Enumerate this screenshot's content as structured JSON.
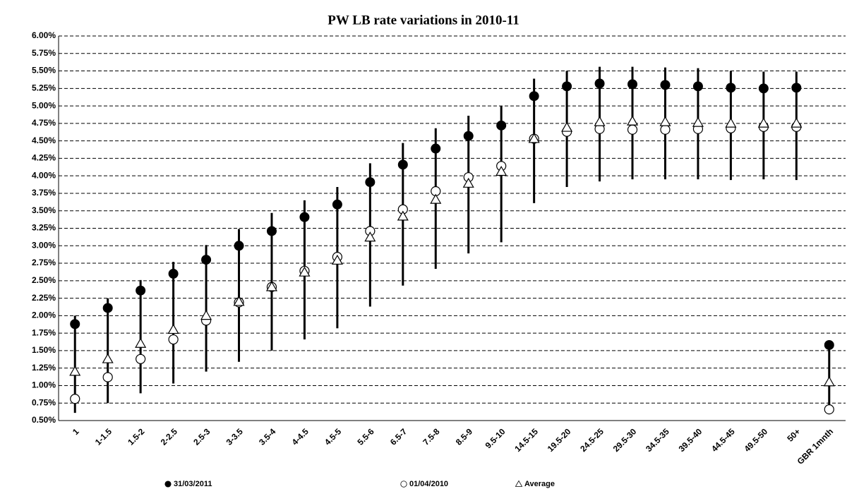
{
  "chart_data": {
    "type": "range-marker",
    "title": "PW LB rate variations in 2010-11",
    "categories": [
      "1",
      "1-1.5",
      "1.5-2",
      "2-2.5",
      "2.5-3",
      "3-3.5",
      "3.5-4",
      "4-4.5",
      "4.5-5",
      "5.5-6",
      "6.5-7",
      "7.5-8",
      "8.5-9",
      "9.5-10",
      "14.5-15",
      "19.5-20",
      "24.5-25",
      "29.5-30",
      "34.5-35",
      "39.5-40",
      "44.5-45",
      "49.5-50",
      "50+",
      "GBR 1mnth"
    ],
    "high": [
      2.0,
      2.25,
      2.51,
      2.77,
      3.01,
      3.24,
      3.47,
      3.65,
      3.84,
      4.18,
      4.47,
      4.68,
      4.86,
      5.0,
      5.39,
      5.5,
      5.56,
      5.56,
      5.55,
      5.54,
      5.5,
      5.49,
      5.49,
      1.59
    ],
    "low": [
      0.61,
      0.75,
      0.89,
      1.03,
      1.2,
      1.34,
      1.5,
      1.66,
      1.82,
      2.13,
      2.43,
      2.67,
      2.89,
      3.05,
      3.61,
      3.84,
      3.92,
      3.95,
      3.95,
      3.95,
      3.94,
      3.95,
      3.94,
      0.66
    ],
    "series": [
      {
        "name": "31/03/2011",
        "marker": "filled-circle",
        "color": "#000000",
        "values": [
          1.88,
          2.11,
          2.36,
          2.6,
          2.8,
          3.0,
          3.21,
          3.41,
          3.59,
          3.91,
          4.16,
          4.39,
          4.57,
          4.72,
          5.14,
          5.28,
          5.32,
          5.31,
          5.3,
          5.28,
          5.26,
          5.25,
          5.26,
          1.58
        ]
      },
      {
        "name": "01/04/2010",
        "marker": "open-circle",
        "color": "#000000",
        "values": [
          0.81,
          1.12,
          1.38,
          1.66,
          1.93,
          2.19,
          2.41,
          2.64,
          2.84,
          3.21,
          3.52,
          3.78,
          3.98,
          4.14,
          4.53,
          4.63,
          4.67,
          4.66,
          4.66,
          4.67,
          4.68,
          4.7,
          4.7,
          0.66
        ]
      },
      {
        "name": "Average",
        "marker": "open-triangle",
        "color": "#000000",
        "values": [
          1.2,
          1.38,
          1.6,
          1.8,
          2.0,
          2.2,
          2.41,
          2.62,
          2.79,
          3.12,
          3.42,
          3.66,
          3.89,
          4.06,
          4.53,
          4.69,
          4.77,
          4.78,
          4.77,
          4.76,
          4.75,
          4.75,
          4.75,
          1.05
        ]
      }
    ],
    "ylim": [
      0.5,
      6.0
    ],
    "yticks": [
      {
        "value": 0.5,
        "label": "0.50%"
      },
      {
        "value": 0.75,
        "label": "0.75%"
      },
      {
        "value": 1.0,
        "label": "1.00%"
      },
      {
        "value": 1.25,
        "label": "1.25%"
      },
      {
        "value": 1.5,
        "label": "1.50%"
      },
      {
        "value": 1.75,
        "label": "1.75%"
      },
      {
        "value": 2.0,
        "label": "2.00%"
      },
      {
        "value": 2.25,
        "label": "2.25%"
      },
      {
        "value": 2.5,
        "label": "2.50%"
      },
      {
        "value": 2.75,
        "label": "2.75%"
      },
      {
        "value": 3.0,
        "label": "3.00%"
      },
      {
        "value": 3.25,
        "label": "3.25%"
      },
      {
        "value": 3.5,
        "label": "3.50%"
      },
      {
        "value": 3.75,
        "label": "3.75%"
      },
      {
        "value": 4.0,
        "label": "4.00%"
      },
      {
        "value": 4.25,
        "label": "4.25%"
      },
      {
        "value": 4.5,
        "label": "4.50%"
      },
      {
        "value": 4.75,
        "label": "4.75%"
      },
      {
        "value": 5.0,
        "label": "5.00%"
      },
      {
        "value": 5.25,
        "label": "5.25%"
      },
      {
        "value": 5.5,
        "label": "5.50%"
      },
      {
        "value": 5.75,
        "label": "5.75%"
      },
      {
        "value": 6.0,
        "label": "6.00%"
      }
    ],
    "grid": true,
    "legend": "bottom"
  }
}
